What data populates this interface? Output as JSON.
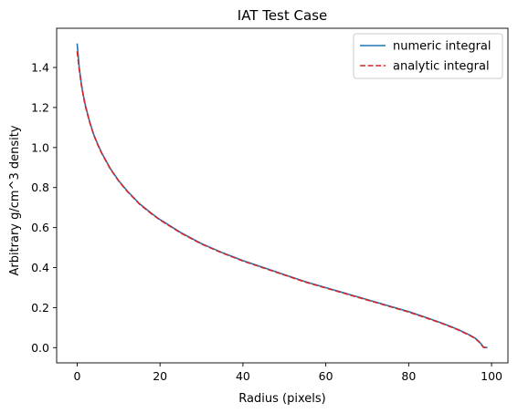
{
  "chart_data": {
    "type": "line",
    "title": "IAT Test Case",
    "xlabel": "Radius (pixels)",
    "ylabel": "Arbitrary g/cm^3 density",
    "xlim": [
      -4.95,
      103.95
    ],
    "ylim": [
      -0.076,
      1.596
    ],
    "xticks": [
      0,
      20,
      40,
      60,
      80,
      100
    ],
    "yticks": [
      0.0,
      0.2,
      0.4,
      0.6,
      0.8,
      1.0,
      1.2,
      1.4
    ],
    "xtick_labels": [
      "0",
      "20",
      "40",
      "60",
      "80",
      "100"
    ],
    "ytick_labels": [
      "0.0",
      "0.2",
      "0.4",
      "0.6",
      "0.8",
      "1.0",
      "1.2",
      "1.4"
    ],
    "grid": false,
    "legend_position": "top-right",
    "series": [
      {
        "name": "numeric integral",
        "color": "#1f77b4",
        "style": "solid",
        "x": [
          0,
          0.5,
          1,
          1.5,
          2,
          3,
          4,
          5,
          6,
          8,
          10,
          12,
          15,
          18,
          20,
          25,
          30,
          35,
          40,
          45,
          50,
          55,
          60,
          65,
          70,
          75,
          80,
          85,
          88,
          90,
          92,
          94,
          95,
          96,
          97,
          97.5,
          98,
          98.5,
          99
        ],
        "y": [
          1.52,
          1.4,
          1.32,
          1.26,
          1.21,
          1.13,
          1.065,
          1.015,
          0.97,
          0.895,
          0.835,
          0.785,
          0.72,
          0.67,
          0.64,
          0.575,
          0.52,
          0.475,
          0.435,
          0.4,
          0.365,
          0.33,
          0.3,
          0.27,
          0.24,
          0.21,
          0.18,
          0.145,
          0.123,
          0.107,
          0.09,
          0.07,
          0.06,
          0.048,
          0.03,
          0.018,
          0.003,
          0.001,
          0.0
        ]
      },
      {
        "name": "analytic integral",
        "color": "#d62728",
        "style": "dashed",
        "x": [
          0,
          0.5,
          1,
          1.5,
          2,
          3,
          4,
          5,
          6,
          8,
          10,
          12,
          15,
          18,
          20,
          25,
          30,
          35,
          40,
          45,
          50,
          55,
          60,
          65,
          70,
          75,
          80,
          85,
          88,
          90,
          92,
          94,
          95,
          96,
          97,
          97.5,
          98,
          98.5,
          99
        ],
        "y": [
          1.48,
          1.39,
          1.315,
          1.255,
          1.205,
          1.127,
          1.062,
          1.012,
          0.968,
          0.893,
          0.833,
          0.783,
          0.718,
          0.668,
          0.638,
          0.573,
          0.518,
          0.473,
          0.433,
          0.398,
          0.363,
          0.328,
          0.298,
          0.268,
          0.238,
          0.208,
          0.178,
          0.143,
          0.121,
          0.105,
          0.088,
          0.068,
          0.058,
          0.046,
          0.028,
          0.016,
          0.002,
          0.0,
          0.0
        ]
      }
    ]
  }
}
